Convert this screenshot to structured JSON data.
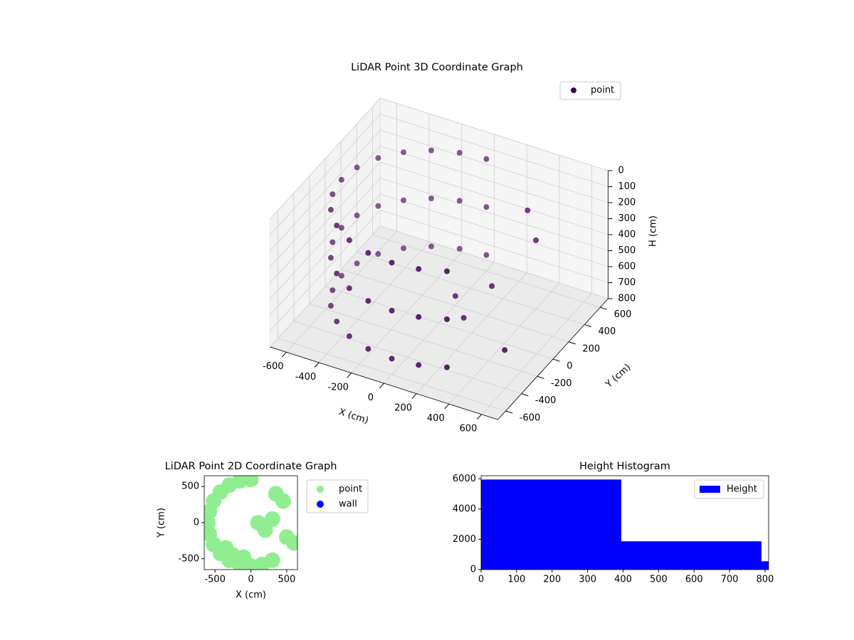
{
  "chart_data": [
    {
      "type": "scatter3d",
      "title": "LiDAR Point 3D Coordinate Graph",
      "x_label": "X (cm)",
      "y_label": "Y (cm)",
      "z_label": "H (cm)",
      "series": [
        {
          "name": "point",
          "color": "#440154",
          "x": [
            0,
            -155,
            -300,
            -424,
            -520,
            -580,
            -600,
            -580,
            -520,
            -424,
            -300,
            -155,
            0,
            155,
            300,
            0,
            -155,
            -300,
            -424,
            -520,
            -580,
            -600,
            -580,
            -520,
            -424,
            -300,
            -155,
            0,
            155,
            300,
            0,
            -155,
            -300,
            -424,
            -520,
            -580,
            -600,
            -580,
            -520,
            -424,
            -300,
            -155,
            0,
            155,
            300,
            100,
            200,
            300,
            450,
            500,
            350
          ],
          "y": [
            600,
            580,
            520,
            424,
            300,
            155,
            0,
            -155,
            -300,
            -424,
            -520,
            -580,
            -600,
            -580,
            -520,
            600,
            580,
            520,
            424,
            300,
            155,
            0,
            -155,
            -300,
            -424,
            -520,
            -580,
            -600,
            -580,
            -520,
            600,
            580,
            520,
            424,
            300,
            155,
            0,
            -155,
            -300,
            -424,
            -520,
            -580,
            -600,
            -580,
            -520,
            0,
            -100,
            50,
            300,
            -200,
            400
          ],
          "z": [
            100,
            100,
            100,
            100,
            100,
            100,
            100,
            100,
            100,
            100,
            100,
            100,
            100,
            100,
            100,
            400,
            400,
            400,
            400,
            400,
            400,
            400,
            400,
            400,
            400,
            400,
            400,
            400,
            400,
            400,
            700,
            700,
            700,
            700,
            700,
            700,
            700,
            700,
            700,
            700,
            700,
            700,
            700,
            700,
            700,
            600,
            650,
            500,
            300,
            700,
            200
          ]
        }
      ],
      "xlim": [
        -700,
        700
      ],
      "xticks": [
        -600,
        -400,
        -200,
        0,
        200,
        400,
        600
      ],
      "ylim": [
        -700,
        700
      ],
      "yticks": [
        -600,
        -400,
        -200,
        0,
        200,
        400,
        600
      ],
      "zlim": [
        800,
        0
      ],
      "zticks": [
        0,
        100,
        200,
        300,
        400,
        500,
        600,
        700,
        800
      ],
      "grid": true,
      "legend": "upper right"
    },
    {
      "type": "scatter",
      "title": "LiDAR Point 2D Coordinate Graph",
      "x_label": "X (cm)",
      "y_label": "Y (cm)",
      "series": [
        {
          "name": "point",
          "color": "#90ee90",
          "x": [
            0,
            -155,
            -300,
            -424,
            -520,
            -580,
            -600,
            -580,
            -520,
            -424,
            -300,
            -155,
            0,
            155,
            300,
            100,
            200,
            300,
            450,
            500,
            350,
            -350,
            -250,
            -100,
            600
          ],
          "y": [
            600,
            580,
            520,
            424,
            300,
            155,
            0,
            -155,
            -300,
            -424,
            -520,
            -580,
            -600,
            -580,
            -520,
            0,
            -100,
            50,
            300,
            -200,
            400,
            -350,
            -450,
            -480,
            -280
          ]
        },
        {
          "name": "wall",
          "color": "#0000ff",
          "x": [],
          "y": []
        }
      ],
      "xlim": [
        -650,
        650
      ],
      "xticks": [
        -500,
        0,
        500
      ],
      "ylim": [
        -650,
        650
      ],
      "yticks": [
        -500,
        0,
        500
      ],
      "legend": "outside right"
    },
    {
      "type": "histogram",
      "title": "Height Histogram",
      "series": [
        {
          "name": "Height",
          "color": "#0000ff",
          "bins": [
            0,
            395,
            790,
            810
          ],
          "counts": [
            5950,
            1870,
            550
          ]
        }
      ],
      "xlim": [
        0,
        810
      ],
      "xticks": [
        0,
        100,
        200,
        300,
        400,
        500,
        600,
        700,
        800
      ],
      "ylim": [
        0,
        6200
      ],
      "yticks": [
        0,
        2000,
        4000,
        6000
      ],
      "legend": "upper right"
    }
  ]
}
